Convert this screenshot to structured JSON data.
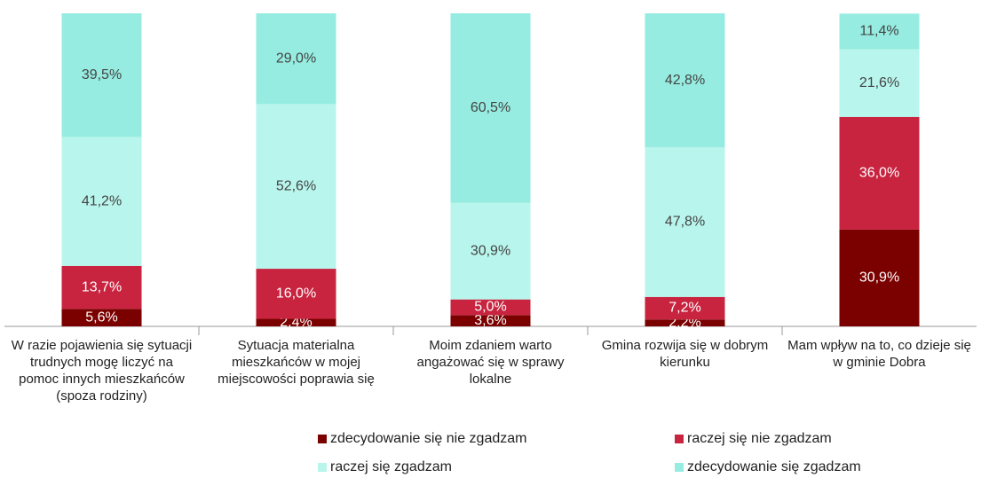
{
  "chart_data": {
    "type": "stacked-bar",
    "categories": [
      "W razie pojawienia się sytuacji trudnych mogę liczyć na pomoc innych mieszkańców (spoza rodziny)",
      "Sytuacja materialna mieszkańców w mojej miejscowości poprawia się",
      "Moim zdaniem warto angażować się w sprawy lokalne",
      "Gmina rozwija się w dobrym kierunku",
      "Mam wpływ na to, co dzieje się w gminie Dobra"
    ],
    "ylim": [
      0,
      100
    ],
    "series": [
      {
        "name": "zdecydowanie się nie zgadzam",
        "color": "#7b0000",
        "values": [
          5.6,
          2.4,
          3.6,
          2.2,
          30.9
        ],
        "value_labels": [
          "5,6%",
          "2,4%",
          "3,6%",
          "2,2%",
          "30,9%"
        ]
      },
      {
        "name": "raczej się nie zgadzam",
        "color": "#c8243f",
        "values": [
          13.7,
          16.0,
          5.0,
          7.2,
          36.0
        ],
        "value_labels": [
          "13,7%",
          "16,0%",
          "5,0%",
          "7,2%",
          "36,0%"
        ]
      },
      {
        "name": "raczej się  zgadzam",
        "color": "#b8f5ec",
        "values": [
          41.2,
          52.6,
          30.9,
          47.8,
          21.6
        ],
        "value_labels": [
          "41,2%",
          "52,6%",
          "30,9%",
          "47,8%",
          "21,6%"
        ]
      },
      {
        "name": "zdecydowanie się zgadzam",
        "color": "#96ece0",
        "values": [
          39.5,
          29.0,
          60.5,
          42.8,
          11.4
        ],
        "value_labels": [
          "39,5%",
          "29,0%",
          "60,5%",
          "42,8%",
          "11,4%"
        ]
      }
    ]
  }
}
